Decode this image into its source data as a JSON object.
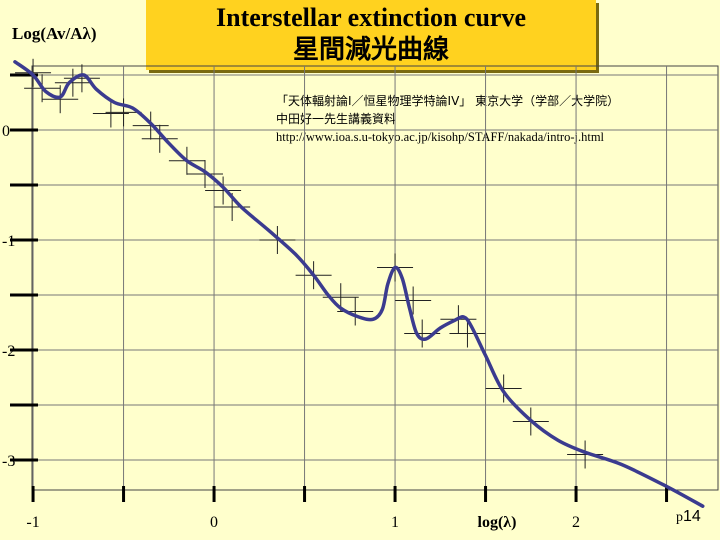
{
  "title": {
    "en": "Interstellar extinction curve",
    "ja": "星間減光曲線"
  },
  "credit": {
    "line1": "「天体輻射論I／恒星物理学特論IV」 東京大学（学部／大学院）",
    "line2": "中田好一先生講義資料",
    "line3": "http://www.ioa.s.u-tokyo.ac.jp/kisohp/STAFF/nakada/intro-j.html"
  },
  "page_number": {
    "prefix": "p",
    "number": "14"
  },
  "colors": {
    "background": "#ffffcc",
    "title_box": "#ffd21f",
    "curve": "#3b3b8f"
  },
  "chart_data": {
    "type": "line",
    "title": "Interstellar extinction curve",
    "ylabel": "Log(Av/Aλ)",
    "xlabel": "log(λ)",
    "xlim": [
      -1.1,
      2.73
    ],
    "ylim": [
      -3.45,
      0.65
    ],
    "x_ticks": [
      -1,
      0,
      1,
      2
    ],
    "x_tick_labels": [
      "-1",
      "0",
      "1",
      "2"
    ],
    "x_minor_ticks": [
      -0.5,
      0.5,
      1.5,
      2.5
    ],
    "y_ticks": [
      0,
      -1,
      -2,
      -3
    ],
    "y_tick_labels": [
      "0",
      "-1",
      "-2",
      "-3"
    ],
    "y_minor_ticks": [
      0.5,
      -0.5,
      -1.5,
      -2.5
    ],
    "grid": true,
    "series": [
      {
        "values": [
          [
            -1.1,
            0.62
          ],
          [
            -1.0,
            0.5
          ],
          [
            -0.93,
            0.35
          ],
          [
            -0.85,
            0.3
          ],
          [
            -0.8,
            0.43
          ],
          [
            -0.72,
            0.5
          ],
          [
            -0.65,
            0.37
          ],
          [
            -0.55,
            0.25
          ],
          [
            -0.45,
            0.2
          ],
          [
            -0.35,
            0.06
          ],
          [
            -0.25,
            -0.12
          ],
          [
            -0.15,
            -0.28
          ],
          [
            -0.05,
            -0.38
          ],
          [
            0.05,
            -0.52
          ],
          [
            0.15,
            -0.7
          ],
          [
            0.3,
            -0.91
          ],
          [
            0.45,
            -1.13
          ],
          [
            0.55,
            -1.32
          ],
          [
            0.63,
            -1.5
          ],
          [
            0.7,
            -1.62
          ],
          [
            0.8,
            -1.7
          ],
          [
            0.88,
            -1.72
          ],
          [
            0.93,
            -1.63
          ],
          [
            0.96,
            -1.4
          ],
          [
            1.0,
            -1.25
          ],
          [
            1.04,
            -1.35
          ],
          [
            1.08,
            -1.62
          ],
          [
            1.12,
            -1.85
          ],
          [
            1.17,
            -1.9
          ],
          [
            1.25,
            -1.8
          ],
          [
            1.33,
            -1.73
          ],
          [
            1.38,
            -1.7
          ],
          [
            1.42,
            -1.78
          ],
          [
            1.5,
            -2.05
          ],
          [
            1.6,
            -2.38
          ],
          [
            1.75,
            -2.64
          ],
          [
            1.9,
            -2.82
          ],
          [
            2.05,
            -2.93
          ],
          [
            2.25,
            -3.04
          ],
          [
            2.5,
            -3.24
          ],
          [
            2.7,
            -3.42
          ]
        ]
      }
    ],
    "error_crosses": [
      [
        -1.0,
        0.52
      ],
      [
        -0.95,
        0.38
      ],
      [
        -0.85,
        0.28
      ],
      [
        -0.78,
        0.43
      ],
      [
        -0.73,
        0.47
      ],
      [
        -0.57,
        0.15
      ],
      [
        -0.5,
        0.16
      ],
      [
        -0.35,
        0.04
      ],
      [
        -0.3,
        -0.08
      ],
      [
        -0.15,
        -0.28
      ],
      [
        -0.05,
        -0.4
      ],
      [
        0.05,
        -0.55
      ],
      [
        0.1,
        -0.7
      ],
      [
        0.35,
        -1.0
      ],
      [
        0.55,
        -1.32
      ],
      [
        0.7,
        -1.52
      ],
      [
        0.78,
        -1.65
      ],
      [
        1.0,
        -1.25
      ],
      [
        1.1,
        -1.55
      ],
      [
        1.15,
        -1.85
      ],
      [
        1.35,
        -1.72
      ],
      [
        1.4,
        -1.85
      ],
      [
        1.6,
        -2.35
      ],
      [
        1.75,
        -2.65
      ],
      [
        2.05,
        -2.95
      ]
    ]
  }
}
